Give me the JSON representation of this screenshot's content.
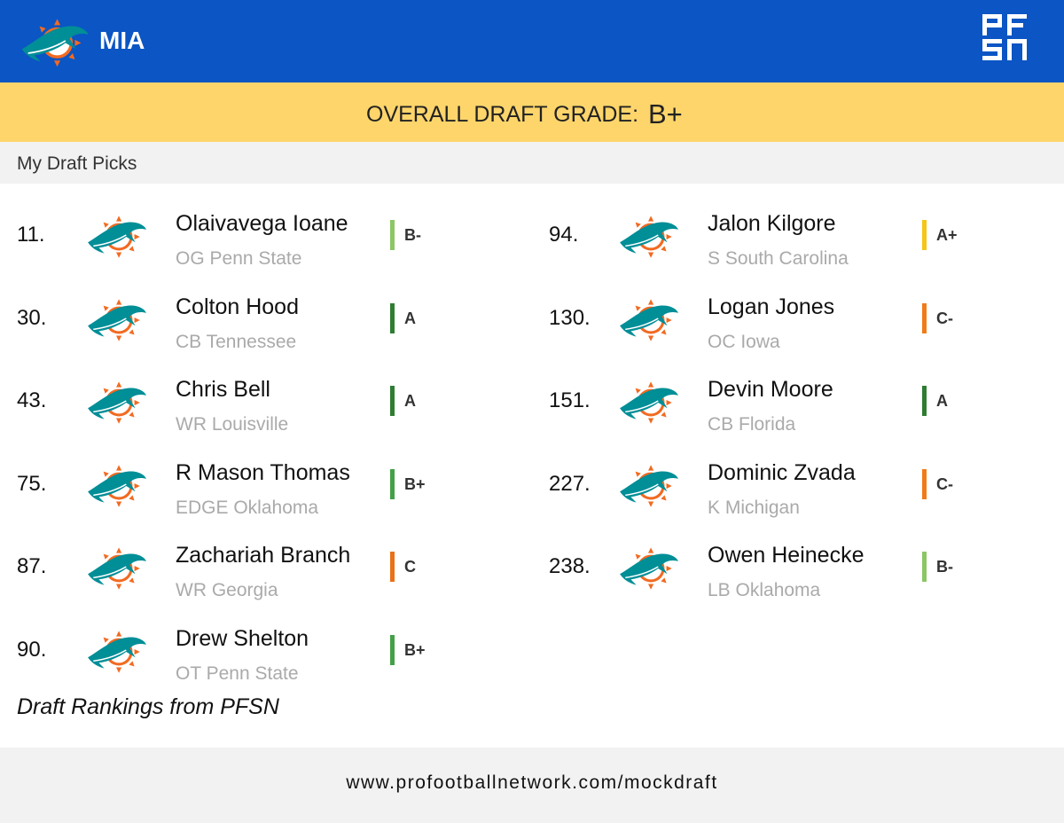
{
  "header": {
    "team": "MIA"
  },
  "grade_bar": {
    "label": "OVERALL DRAFT GRADE:",
    "grade": "B+"
  },
  "section_title": "My Draft Picks",
  "picks": [
    {
      "pick": "11.",
      "name": "Olaivavega Ioane",
      "position": "OG Penn State",
      "grade": "B-",
      "color": "#8cc665"
    },
    {
      "pick": "30.",
      "name": "Colton Hood",
      "position": "CB Tennessee",
      "grade": "A",
      "color": "#2e7d32"
    },
    {
      "pick": "43.",
      "name": "Chris Bell",
      "position": "WR Louisville",
      "grade": "A",
      "color": "#2e7d32"
    },
    {
      "pick": "75.",
      "name": "R Mason Thomas",
      "position": "EDGE Oklahoma",
      "grade": "B+",
      "color": "#43a047"
    },
    {
      "pick": "87.",
      "name": "Zachariah Branch",
      "position": "WR Georgia",
      "grade": "C",
      "color": "#e8711a"
    },
    {
      "pick": "90.",
      "name": "Drew Shelton",
      "position": "OT Penn State",
      "grade": "B+",
      "color": "#43a047"
    },
    {
      "pick": "94.",
      "name": "Jalon Kilgore",
      "position": "S South Carolina",
      "grade": "A+",
      "color": "#f5c518"
    },
    {
      "pick": "130.",
      "name": "Logan Jones",
      "position": "OC Iowa",
      "grade": "C-",
      "color": "#f07b1a"
    },
    {
      "pick": "151.",
      "name": "Devin Moore",
      "position": "CB Florida",
      "grade": "A",
      "color": "#2e7d32"
    },
    {
      "pick": "227.",
      "name": "Dominic Zvada",
      "position": "K Michigan",
      "grade": "C-",
      "color": "#f07b1a"
    },
    {
      "pick": "238.",
      "name": "Owen Heinecke",
      "position": "LB Oklahoma",
      "grade": "B-",
      "color": "#8cc665"
    }
  ],
  "note": "Draft Rankings from PFSN",
  "footer": {
    "url": "www.profootballnetwork.com/mockdraft"
  }
}
